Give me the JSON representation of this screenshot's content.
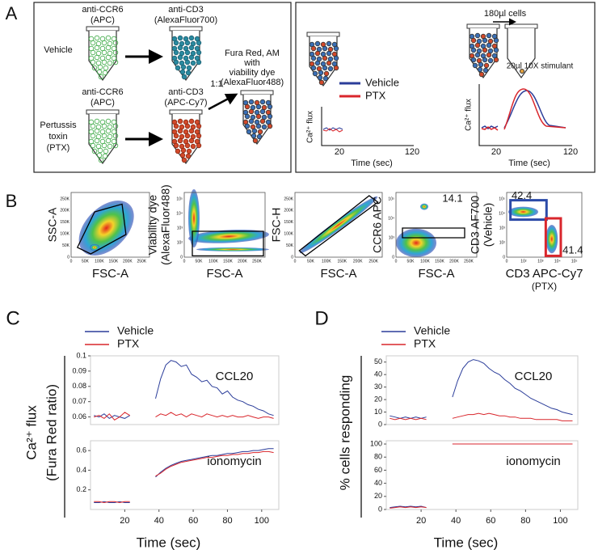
{
  "panel_a": {
    "label": "A",
    "vehicle_row": {
      "label": "Vehicle",
      "tube1": [
        "anti-CCR6",
        "(APC)"
      ],
      "tube2": [
        "anti-CD3",
        "(AlexaFluor700)"
      ]
    },
    "ptx_row": {
      "label": [
        "Pertussis",
        "toxin",
        "(PTX)"
      ],
      "tube1": [
        "anti-CCR6",
        "(APC)"
      ],
      "tube2": [
        "anti-CD3",
        "(APC-Cy7)"
      ]
    },
    "ratio": "1:1",
    "mix": [
      "Fura Red, AM",
      "with",
      "viability dye",
      "(AlexaFluor488)"
    ],
    "assay": {
      "legend": [
        "Vehicle",
        "PTX"
      ],
      "cells": "180µl cells",
      "stimulant": "20µl 10X stimulant",
      "baseline_plot": {
        "y_label": "Ca²⁺ flux",
        "xticks": [
          "20",
          "120"
        ],
        "x_label": "Time (sec)"
      },
      "stim_plot": {
        "y_label": "Ca²⁺ flux",
        "xticks": [
          "20",
          "120"
        ],
        "x_label": "Time (sec)"
      }
    }
  },
  "panel_b": {
    "label": "B",
    "plots": [
      {
        "x_label": [
          "FSC-A"
        ],
        "y_label": [
          "SSC-A"
        ],
        "xticks": [
          "0",
          "50K",
          "100K",
          "150K",
          "200K",
          "250K"
        ],
        "yticks": [
          "0",
          "50K",
          "100K",
          "150K",
          "200K",
          "250K"
        ]
      },
      {
        "x_label": [
          "FSC-A"
        ],
        "y_label": [
          "Viability dye",
          "(AlexaFluor488)"
        ],
        "xticks": [
          "0",
          "50K",
          "100K",
          "150K",
          "200K",
          "250K"
        ],
        "yticks": [
          "0",
          "10²",
          "10³",
          "10⁴",
          "10⁵"
        ]
      },
      {
        "x_label": [
          "FSC-A"
        ],
        "y_label": [
          "FSC-H"
        ],
        "xticks": [
          "0",
          "50K",
          "100K",
          "150K",
          "200K",
          "250K"
        ],
        "yticks": [
          "0",
          "50K",
          "100K",
          "150K",
          "200K",
          "250K"
        ]
      },
      {
        "x_label": [
          "FSC-A"
        ],
        "y_label": [
          "CCR6 APC"
        ],
        "xticks": [
          "0",
          "50K",
          "100K",
          "150K",
          "200K",
          "250K"
        ],
        "yticks": [
          "0",
          "10³",
          "10⁴",
          "10⁵"
        ],
        "gates": [
          "14.1"
        ]
      },
      {
        "x_label": [
          "CD3 APC-Cy7",
          "(PTX)"
        ],
        "y_label": [
          "CD3 AF700",
          "(Vehicle)"
        ],
        "xticks": [
          "0",
          "10²",
          "10³",
          "10⁴",
          "10⁵"
        ],
        "yticks": [
          "0",
          "10²",
          "10³",
          "10⁴",
          "10⁵"
        ],
        "gates": [
          "42.4",
          "41.4"
        ]
      }
    ]
  },
  "panel_c": {
    "label": "C"
  },
  "panel_d": {
    "label": "D"
  },
  "chart_data": [
    {
      "type": "line",
      "annotation": "CCL20",
      "y_label": [
        "Ca²⁺ flux",
        "(Fura Red ratio)"
      ],
      "x": [
        2,
        5,
        8,
        11,
        14,
        17,
        20,
        23,
        26,
        29,
        32,
        35,
        38,
        41,
        44,
        47,
        50,
        53,
        56,
        59,
        62,
        65,
        68,
        71,
        74,
        77,
        80,
        83,
        86,
        89,
        92,
        95,
        98,
        101,
        104,
        107
      ],
      "xlim": [
        0,
        110
      ],
      "ylim": [
        0.055,
        0.1
      ],
      "yticks": [
        0.06,
        0.07,
        0.08,
        0.09,
        0.1
      ],
      "series": [
        {
          "name": "Vehicle",
          "color": "#2b3d9a",
          "values": [
            0.061,
            0.06,
            0.062,
            0.059,
            0.061,
            0.06,
            0.059,
            0.061,
            null,
            null,
            null,
            null,
            0.072,
            0.085,
            0.094,
            0.097,
            0.096,
            0.093,
            0.094,
            0.088,
            0.086,
            0.083,
            0.084,
            0.08,
            0.079,
            0.075,
            0.077,
            0.073,
            0.071,
            0.07,
            0.068,
            0.067,
            0.065,
            0.064,
            0.062,
            0.061
          ]
        },
        {
          "name": "PTX",
          "color": "#d9262c",
          "values": [
            0.06,
            0.061,
            0.059,
            0.062,
            0.058,
            0.06,
            0.063,
            0.061,
            null,
            null,
            null,
            null,
            0.06,
            0.062,
            0.061,
            0.063,
            0.061,
            0.062,
            0.06,
            0.062,
            0.061,
            0.06,
            0.062,
            0.061,
            0.06,
            0.061,
            0.06,
            0.061,
            0.06,
            0.06,
            0.061,
            0.06,
            0.059,
            0.06,
            0.06,
            0.059
          ]
        }
      ]
    },
    {
      "type": "line",
      "annotation": "ionomycin",
      "x_label": "Time (sec)",
      "x": [
        2,
        5,
        8,
        11,
        14,
        17,
        20,
        23,
        26,
        29,
        32,
        35,
        38,
        41,
        44,
        47,
        50,
        53,
        56,
        59,
        62,
        65,
        68,
        71,
        74,
        77,
        80,
        83,
        86,
        89,
        92,
        95,
        98,
        101,
        104,
        107
      ],
      "xlim": [
        0,
        110
      ],
      "ylim": [
        0,
        0.7
      ],
      "yticks": [
        0.2,
        0.4,
        0.6
      ],
      "xticks": [
        20,
        40,
        60,
        80,
        100
      ],
      "series": [
        {
          "name": "Vehicle",
          "color": "#2b3d9a",
          "values": [
            0.07,
            0.07,
            0.08,
            0.07,
            0.07,
            0.08,
            0.07,
            0.07,
            null,
            null,
            null,
            null,
            0.33,
            0.38,
            0.42,
            0.45,
            0.47,
            0.49,
            0.5,
            0.51,
            0.52,
            0.53,
            0.54,
            0.55,
            0.55,
            0.56,
            0.57,
            0.57,
            0.58,
            0.59,
            0.59,
            0.6,
            0.6,
            0.61,
            0.62,
            0.62
          ]
        },
        {
          "name": "PTX",
          "color": "#d9262c",
          "values": [
            0.08,
            0.08,
            0.07,
            0.08,
            0.08,
            0.07,
            0.08,
            0.08,
            null,
            null,
            null,
            null,
            0.34,
            0.37,
            0.41,
            0.44,
            0.46,
            0.48,
            0.49,
            0.5,
            0.51,
            0.52,
            0.53,
            0.53,
            0.54,
            0.55,
            0.55,
            0.56,
            0.56,
            0.57,
            0.57,
            0.58,
            0.58,
            0.59,
            0.59,
            0.58
          ]
        }
      ]
    },
    {
      "type": "line",
      "annotation": "CCL20",
      "y_label": "% cells responding",
      "x": [
        2,
        5,
        8,
        11,
        14,
        17,
        20,
        23,
        26,
        29,
        32,
        35,
        38,
        41,
        44,
        47,
        50,
        53,
        56,
        59,
        62,
        65,
        68,
        71,
        74,
        77,
        80,
        83,
        86,
        89,
        92,
        95,
        98,
        101,
        104,
        107
      ],
      "xlim": [
        0,
        110
      ],
      "ylim": [
        0,
        55
      ],
      "yticks": [
        0,
        10,
        20,
        30,
        40,
        50
      ],
      "series": [
        {
          "name": "Vehicle",
          "color": "#2b3d9a",
          "values": [
            7,
            6,
            5,
            6,
            5,
            6,
            5,
            6,
            null,
            null,
            null,
            null,
            22,
            35,
            45,
            50,
            52,
            51,
            49,
            45,
            42,
            40,
            36,
            33,
            29,
            27,
            24,
            21,
            19,
            17,
            15,
            13,
            12,
            10,
            9,
            8
          ]
        },
        {
          "name": "PTX",
          "color": "#d9262c",
          "values": [
            5,
            4,
            5,
            4,
            5,
            4,
            5,
            4,
            null,
            null,
            null,
            null,
            5,
            6,
            7,
            8,
            8,
            9,
            8,
            9,
            8,
            7,
            7,
            6,
            6,
            5,
            5,
            5,
            4,
            4,
            4,
            4,
            4,
            3,
            3,
            3
          ]
        }
      ]
    },
    {
      "type": "line",
      "annotation": "ionomycin",
      "x_label": "Time (sec)",
      "x": [
        2,
        5,
        8,
        11,
        14,
        17,
        20,
        23,
        26,
        29,
        32,
        35,
        38,
        41,
        44,
        47,
        50,
        53,
        56,
        59,
        62,
        65,
        68,
        71,
        74,
        77,
        80,
        83,
        86,
        89,
        92,
        95,
        98,
        101,
        104,
        107
      ],
      "xlim": [
        0,
        110
      ],
      "ylim": [
        0,
        105
      ],
      "yticks": [
        0,
        20,
        40,
        60,
        80,
        100
      ],
      "xticks": [
        20,
        40,
        60,
        80,
        100
      ],
      "series": [
        {
          "name": "Vehicle",
          "color": "#2b3d9a",
          "values": [
            3,
            4,
            5,
            4,
            5,
            4,
            5,
            3,
            null,
            null,
            null,
            null,
            100,
            100,
            100,
            100,
            100,
            100,
            100,
            100,
            100,
            100,
            100,
            100,
            100,
            100,
            100,
            100,
            100,
            100,
            100,
            100,
            100,
            100,
            100,
            100
          ]
        },
        {
          "name": "PTX",
          "color": "#d9262c",
          "values": [
            2,
            3,
            4,
            3,
            4,
            3,
            4,
            3,
            null,
            null,
            null,
            null,
            100,
            100,
            100,
            100,
            100,
            100,
            100,
            100,
            100,
            100,
            100,
            100,
            100,
            100,
            100,
            100,
            100,
            100,
            100,
            100,
            100,
            100,
            100,
            100
          ]
        }
      ]
    }
  ]
}
